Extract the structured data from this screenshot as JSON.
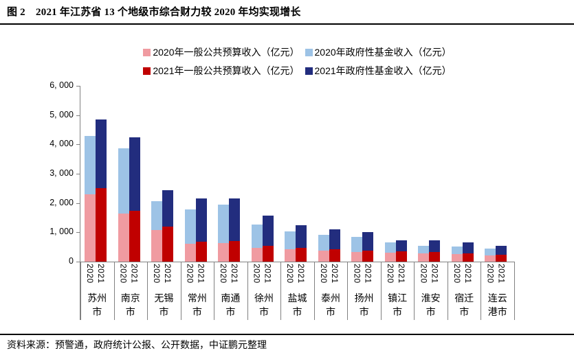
{
  "header": {
    "title": "图 2　2021 年江苏省 13 个地级市综合财力较 2020 年均实现增长"
  },
  "footer": {
    "source": "资料来源：预警通，政府统计公报、公开数据，中证鹏元整理"
  },
  "colors": {
    "budget_2020_pink": "#F09BA1",
    "fund_2020_lightblue": "#9DC3E6",
    "budget_2021_darkred": "#C00000",
    "fund_2021_navy": "#222D7E",
    "axis_gray": "#808080",
    "rule_black": "#000000"
  },
  "chart_data": {
    "type": "bar",
    "stacked": true,
    "unit": "亿元",
    "legend_position": "top",
    "gridlines": false,
    "categories": [
      "苏州市",
      "南京市",
      "无锡市",
      "常州市",
      "南通市",
      "徐州市",
      "盐城市",
      "泰州市",
      "扬州市",
      "镇江市",
      "淮安市",
      "宿迁市",
      "连云港市"
    ],
    "bar_year_labels": [
      "2020",
      "2021"
    ],
    "series": [
      {
        "name": "2020年一般公共预算收入（亿元）",
        "stack": "2020",
        "color": "#F09BA1",
        "values": [
          2303,
          1638,
          1076,
          617,
          639,
          469,
          421,
          386,
          336,
          316,
          285,
          251,
          221
        ]
      },
      {
        "name": "2020年政府性基金收入（亿元）",
        "stack": "2020",
        "color": "#9DC3E6",
        "values": [
          1980,
          2222,
          990,
          1155,
          1310,
          790,
          610,
          528,
          508,
          347,
          247,
          265,
          224
        ]
      },
      {
        "name": "2021年一般公共预算收入（亿元）",
        "stack": "2021",
        "color": "#C00000",
        "values": [
          2510,
          1729,
          1201,
          686,
          709,
          547,
          460,
          420,
          364,
          345,
          323,
          285,
          245
        ]
      },
      {
        "name": "2021年政府性基金收入（亿元）",
        "stack": "2021",
        "color": "#222D7E",
        "values": [
          2330,
          2513,
          1240,
          1460,
          1437,
          1016,
          790,
          689,
          651,
          382,
          397,
          371,
          294
        ]
      }
    ],
    "y_axis": {
      "min": 0,
      "max": 6000,
      "step": 1000,
      "tick_labels": [
        "0",
        "1, 000",
        "2, 000",
        "3, 000",
        "4, 000",
        "5, 000",
        "6, 000"
      ]
    }
  }
}
